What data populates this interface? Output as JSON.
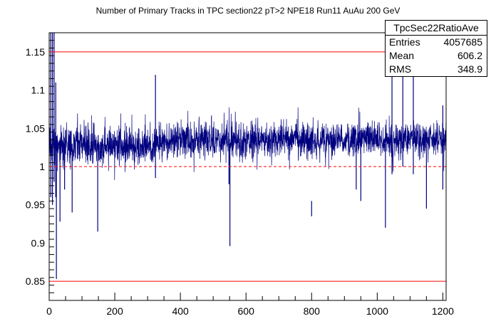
{
  "chart_data": {
    "type": "line",
    "title": "Number of Primary Tracks in TPC section22 pT>2 NPE18 Run11 AuAu 200 GeV",
    "xlabel": "",
    "ylabel": "",
    "xlim": [
      0,
      1210
    ],
    "ylim": [
      0.825,
      1.175
    ],
    "x_ticks": [
      0,
      200,
      400,
      600,
      800,
      1000,
      1200
    ],
    "x_tick_labels": [
      "0",
      "200",
      "400",
      "600",
      "800",
      "1000",
      "1200"
    ],
    "y_ticks": [
      0.85,
      0.9,
      0.95,
      1.0,
      1.05,
      1.1,
      1.15
    ],
    "y_tick_labels": [
      "0.85",
      "0.9",
      "0.95",
      "1",
      "1.05",
      "1.1",
      "1.15"
    ],
    "reference_lines": [
      {
        "y": 1.15,
        "style": "solid",
        "color": "#ff0000"
      },
      {
        "y": 1.0,
        "style": "dashed",
        "color": "#ff0000"
      },
      {
        "y": 0.85,
        "style": "solid",
        "color": "#ff0000"
      }
    ],
    "series": [
      {
        "color": "#00007f",
        "baseline_segments": [
          {
            "x": [
              0,
              320
            ],
            "level": 1.027,
            "spread": 0.035
          },
          {
            "x": [
              320,
              1210
            ],
            "level": 1.035,
            "spread": 0.034
          }
        ],
        "spikes": [
          {
            "x": 5,
            "low": 0.96,
            "high": 1.175
          },
          {
            "x": 10,
            "low": 0.95,
            "high": 1.175
          },
          {
            "x": 15,
            "low": 0.98,
            "high": 1.175
          },
          {
            "x": 20,
            "low": 0.96,
            "high": 1.11
          },
          {
            "x": 22,
            "low": 0.853,
            "high": 1.04
          },
          {
            "x": 33,
            "low": 0.928,
            "high": 1.03
          },
          {
            "x": 47,
            "low": 0.97,
            "high": 1.03
          },
          {
            "x": 70,
            "low": 0.94,
            "high": 1.03
          },
          {
            "x": 148,
            "low": 0.915,
            "high": 1.03
          },
          {
            "x": 324,
            "low": 0.985,
            "high": 1.12
          },
          {
            "x": 551,
            "low": 0.896,
            "high": 1.03
          },
          {
            "x": 548,
            "low": 0.977,
            "high": 1.03
          },
          {
            "x": 800,
            "low": 0.935,
            "high": 0.955
          },
          {
            "x": 936,
            "low": 0.97,
            "high": 1.03
          },
          {
            "x": 950,
            "low": 0.955,
            "high": 1.03
          },
          {
            "x": 1025,
            "low": 0.92,
            "high": 1.03
          },
          {
            "x": 1045,
            "low": 0.99,
            "high": 1.12
          },
          {
            "x": 1078,
            "low": 1.0,
            "high": 1.12
          },
          {
            "x": 1110,
            "low": 0.99,
            "high": 1.12
          },
          {
            "x": 1150,
            "low": 0.945,
            "high": 1.03
          },
          {
            "x": 1200,
            "low": 0.97,
            "high": 1.08
          }
        ]
      }
    ]
  },
  "stats_box": {
    "name": "TpcSec22RatioAve",
    "entries_label": "Entries",
    "entries_value": "4057685",
    "mean_label": "Mean",
    "mean_value": "606.2",
    "rms_label": "RMS",
    "rms_value": "348.9"
  }
}
